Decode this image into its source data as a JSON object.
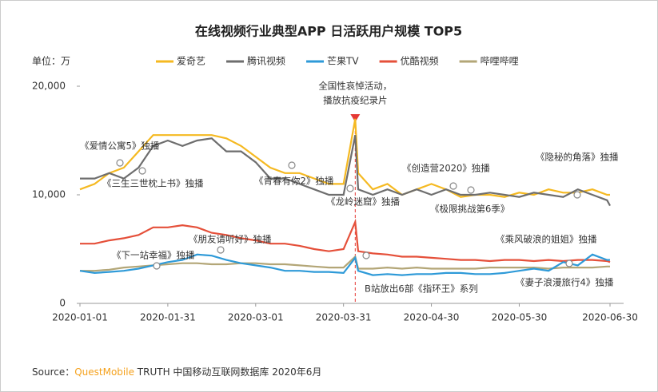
{
  "chart_data": {
    "type": "line",
    "title": "在线视频行业典型APP 日活跃用户规模 TOP5",
    "unit_label": "单位：万",
    "x": [
      "2020-01-01",
      "2020-01-06",
      "2020-01-11",
      "2020-01-16",
      "2020-01-21",
      "2020-01-26",
      "2020-01-31",
      "2020-02-05",
      "2020-02-10",
      "2020-02-15",
      "2020-02-20",
      "2020-02-25",
      "2020-03-01",
      "2020-03-06",
      "2020-03-11",
      "2020-03-16",
      "2020-03-21",
      "2020-03-26",
      "2020-03-31",
      "2020-04-04",
      "2020-04-05",
      "2020-04-10",
      "2020-04-15",
      "2020-04-20",
      "2020-04-25",
      "2020-04-30",
      "2020-05-05",
      "2020-05-10",
      "2020-05-15",
      "2020-05-20",
      "2020-05-25",
      "2020-05-30",
      "2020-06-04",
      "2020-06-09",
      "2020-06-14",
      "2020-06-19",
      "2020-06-24",
      "2020-06-29",
      "2020-06-30"
    ],
    "xlim": [
      "2020-01-01",
      "2020-06-30"
    ],
    "xticks": [
      "2020-01-01",
      "2020-01-31",
      "2020-03-01",
      "2020-03-31",
      "2020-04-30",
      "2020-05-30",
      "2020-06-30"
    ],
    "ylim": [
      0,
      20000
    ],
    "yticks": [
      0,
      {
        "value": 10000,
        "label": "10,000"
      },
      {
        "value": 20000,
        "label": "20,000"
      }
    ],
    "series": [
      {
        "name": "爱奇艺",
        "color": "#f5b921",
        "values": [
          10500,
          11000,
          12000,
          12500,
          14000,
          15500,
          15500,
          15500,
          15500,
          15500,
          15200,
          14500,
          13500,
          12500,
          12000,
          12000,
          11500,
          11000,
          11000,
          17000,
          12000,
          10500,
          11000,
          10000,
          10500,
          11000,
          10500,
          9800,
          10000,
          10000,
          9800,
          10200,
          10000,
          10500,
          10200,
          10200,
          10500,
          10000,
          10000
        ]
      },
      {
        "name": "腾讯视频",
        "color": "#6e6e6e",
        "values": [
          11500,
          11500,
          12000,
          11500,
          12500,
          14500,
          15000,
          14500,
          15000,
          15200,
          14000,
          14000,
          13000,
          11500,
          11500,
          11000,
          10500,
          10000,
          10000,
          15500,
          10500,
          10000,
          10500,
          10000,
          10500,
          10000,
          10500,
          10000,
          10000,
          10200,
          10000,
          9800,
          10200,
          10000,
          9800,
          10500,
          10000,
          9500,
          9000
        ]
      },
      {
        "name": "芒果TV",
        "color": "#2e9ad8",
        "values": [
          3000,
          2800,
          2900,
          3000,
          3200,
          3500,
          3800,
          4000,
          4500,
          4400,
          4000,
          3700,
          3500,
          3300,
          3000,
          3000,
          2900,
          2900,
          2800,
          4200,
          3000,
          2600,
          2700,
          2600,
          2700,
          2700,
          2800,
          2800,
          2700,
          2700,
          2800,
          3000,
          3200,
          3000,
          3800,
          3500,
          4500,
          4000,
          4000
        ]
      },
      {
        "name": "优酷视频",
        "color": "#e5503a",
        "values": [
          5500,
          5500,
          5800,
          6000,
          6300,
          7000,
          7000,
          7200,
          7000,
          6500,
          6300,
          6000,
          5800,
          5500,
          5500,
          5300,
          5000,
          4800,
          5000,
          7500,
          4800,
          4600,
          4500,
          4300,
          4300,
          4200,
          4100,
          4000,
          4000,
          3900,
          4000,
          4000,
          3900,
          4000,
          3900,
          4000,
          4000,
          3900,
          3800
        ]
      },
      {
        "name": "哔哩哔哩",
        "color": "#b3a677",
        "values": [
          3000,
          3000,
          3100,
          3300,
          3400,
          3500,
          3600,
          3700,
          3700,
          3600,
          3600,
          3700,
          3700,
          3600,
          3600,
          3500,
          3400,
          3300,
          3300,
          4300,
          3200,
          3200,
          3300,
          3200,
          3300,
          3200,
          3200,
          3200,
          3200,
          3300,
          3300,
          3300,
          3300,
          3200,
          3300,
          3300,
          3300,
          3400,
          3400
        ]
      }
    ],
    "annotations": [
      "《爱情公寓5》独播",
      "《三生三世枕上书》独播",
      "《朋友请听好》独播",
      "《下一站幸福》独播",
      "《青春有你2》独播",
      "全国性哀悼活动，",
      "播放抗疫纪录片",
      "《龙岭迷窟》独播",
      "《创造营2020》独播",
      "《极限挑战第6季》",
      "《隐秘的角落》独播",
      "《乘风破浪的姐姐》独播",
      "《妻子浪漫旅行4》独播",
      "B站放出6部《指环王》系列"
    ],
    "source": {
      "prefix": "Source：",
      "brand": "QuestMobile",
      "rest": " TRUTH 中国移动互联网数据库 2020年6月"
    }
  }
}
